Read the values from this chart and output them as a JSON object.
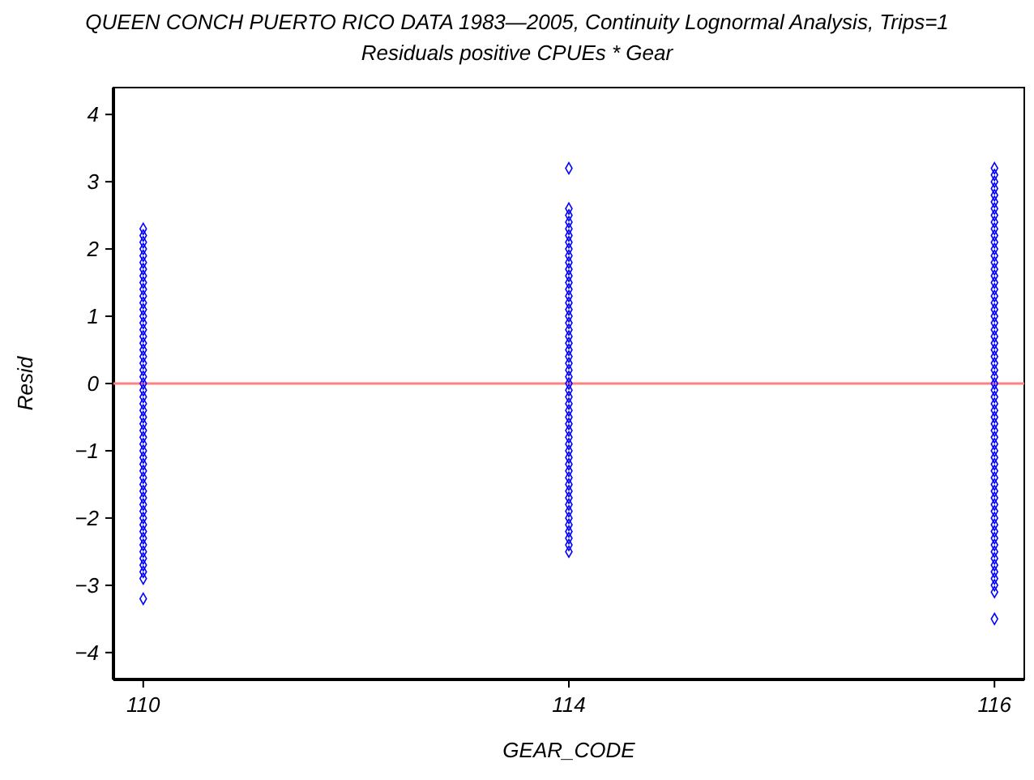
{
  "chart_data": {
    "type": "scatter",
    "title": "QUEEN CONCH PUERTO RICO DATA 1983—2005, Continuity Lognormal Analysis, Trips=1",
    "subtitle": "Residuals positive CPUEs * Gear",
    "xlabel": "GEAR_CODE",
    "ylabel": "Resid",
    "categories": [
      "110",
      "114",
      "116"
    ],
    "ylim": [
      -4.4,
      4.4
    ],
    "yticks": [
      -4,
      -3,
      -2,
      -1,
      0,
      1,
      2,
      3,
      4
    ],
    "grid": false,
    "marker": "diamond",
    "ref_lines": [
      {
        "axis": "y",
        "value": 0,
        "color": "#ff8080"
      }
    ],
    "series": [
      {
        "color": "#0000ff",
        "x": [
          "110",
          "110",
          "110",
          "110",
          "110",
          "110",
          "110",
          "110",
          "110",
          "110",
          "110",
          "110",
          "110",
          "110",
          "110",
          "110",
          "110",
          "110",
          "110",
          "110",
          "110",
          "110",
          "110",
          "110",
          "110",
          "110",
          "110",
          "110",
          "110",
          "110",
          "110",
          "110",
          "110",
          "110",
          "110",
          "110",
          "110",
          "110",
          "110",
          "110",
          "110",
          "110",
          "110",
          "110",
          "110",
          "110",
          "110",
          "110",
          "110",
          "110",
          "110",
          "110",
          "110",
          "110"
        ],
        "values": [
          -3.2,
          -2.9,
          -2.8,
          -2.7,
          -2.6,
          -2.5,
          -2.4,
          -2.3,
          -2.2,
          -2.1,
          -2.0,
          -1.9,
          -1.8,
          -1.7,
          -1.6,
          -1.5,
          -1.4,
          -1.3,
          -1.2,
          -1.1,
          -1.0,
          -0.9,
          -0.8,
          -0.7,
          -0.6,
          -0.5,
          -0.4,
          -0.3,
          -0.2,
          -0.1,
          0,
          0.1,
          0.2,
          0.3,
          0.4,
          0.5,
          0.6,
          0.7,
          0.8,
          0.9,
          1.0,
          1.1,
          1.2,
          1.3,
          1.4,
          1.5,
          1.6,
          1.7,
          1.8,
          1.9,
          2.0,
          2.1,
          2.2,
          2.3
        ]
      },
      {
        "color": "#0000ff",
        "x": [
          "114",
          "114",
          "114",
          "114",
          "114",
          "114",
          "114",
          "114",
          "114",
          "114",
          "114",
          "114",
          "114",
          "114",
          "114",
          "114",
          "114",
          "114",
          "114",
          "114",
          "114",
          "114",
          "114",
          "114",
          "114",
          "114",
          "114",
          "114",
          "114",
          "114",
          "114",
          "114",
          "114",
          "114",
          "114",
          "114",
          "114",
          "114",
          "114",
          "114",
          "114",
          "114",
          "114",
          "114",
          "114",
          "114",
          "114",
          "114",
          "114",
          "114",
          "114",
          "114",
          "114"
        ],
        "values": [
          -2.5,
          -2.4,
          -2.3,
          -2.2,
          -2.1,
          -2.0,
          -1.9,
          -1.8,
          -1.7,
          -1.6,
          -1.5,
          -1.4,
          -1.3,
          -1.2,
          -1.1,
          -1.0,
          -0.9,
          -0.8,
          -0.7,
          -0.6,
          -0.5,
          -0.4,
          -0.3,
          -0.2,
          -0.1,
          0,
          0.1,
          0.2,
          0.3,
          0.4,
          0.5,
          0.6,
          0.7,
          0.8,
          0.9,
          1.0,
          1.1,
          1.2,
          1.3,
          1.4,
          1.5,
          1.6,
          1.7,
          1.8,
          1.9,
          2.0,
          2.1,
          2.2,
          2.3,
          2.4,
          2.5,
          2.6,
          3.2
        ]
      },
      {
        "color": "#0000ff",
        "x": [
          "116",
          "116",
          "116",
          "116",
          "116",
          "116",
          "116",
          "116",
          "116",
          "116",
          "116",
          "116",
          "116",
          "116",
          "116",
          "116",
          "116",
          "116",
          "116",
          "116",
          "116",
          "116",
          "116",
          "116",
          "116",
          "116",
          "116",
          "116",
          "116",
          "116",
          "116",
          "116",
          "116",
          "116",
          "116",
          "116",
          "116",
          "116",
          "116",
          "116",
          "116",
          "116",
          "116",
          "116",
          "116",
          "116",
          "116",
          "116",
          "116",
          "116",
          "116",
          "116",
          "116",
          "116",
          "116",
          "116",
          "116",
          "116",
          "116",
          "116",
          "116",
          "116",
          "116",
          "116",
          "116"
        ],
        "values": [
          -3.5,
          -3.1,
          -3.0,
          -2.9,
          -2.8,
          -2.7,
          -2.6,
          -2.5,
          -2.4,
          -2.3,
          -2.2,
          -2.1,
          -2.0,
          -1.9,
          -1.8,
          -1.7,
          -1.6,
          -1.5,
          -1.4,
          -1.3,
          -1.2,
          -1.1,
          -1.0,
          -0.9,
          -0.8,
          -0.7,
          -0.6,
          -0.5,
          -0.4,
          -0.3,
          -0.2,
          -0.1,
          0,
          0.1,
          0.2,
          0.3,
          0.4,
          0.5,
          0.6,
          0.7,
          0.8,
          0.9,
          1.0,
          1.1,
          1.2,
          1.3,
          1.4,
          1.5,
          1.6,
          1.7,
          1.8,
          1.9,
          2.0,
          2.1,
          2.2,
          2.3,
          2.4,
          2.5,
          2.6,
          2.7,
          2.8,
          2.9,
          3.0,
          3.1,
          3.2
        ]
      }
    ]
  }
}
